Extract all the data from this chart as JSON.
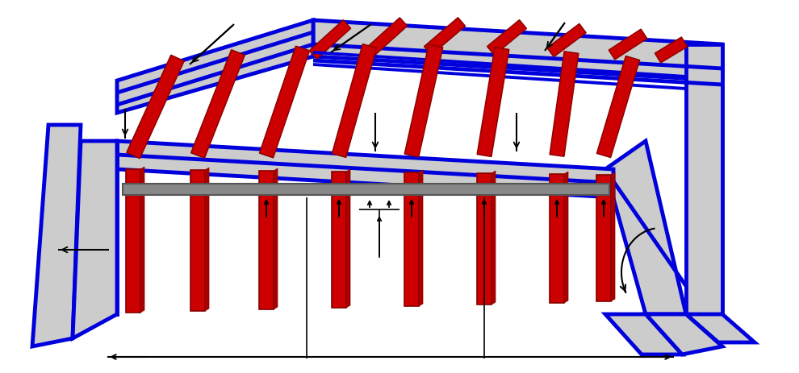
{
  "bg": "#ffffff",
  "blue": "#0000DD",
  "red": "#CC0000",
  "gray_fill": "#CCCCCC",
  "gray_rail": "#999999",
  "black": "#000000",
  "blw": 3.5,
  "rlw": 2.0
}
